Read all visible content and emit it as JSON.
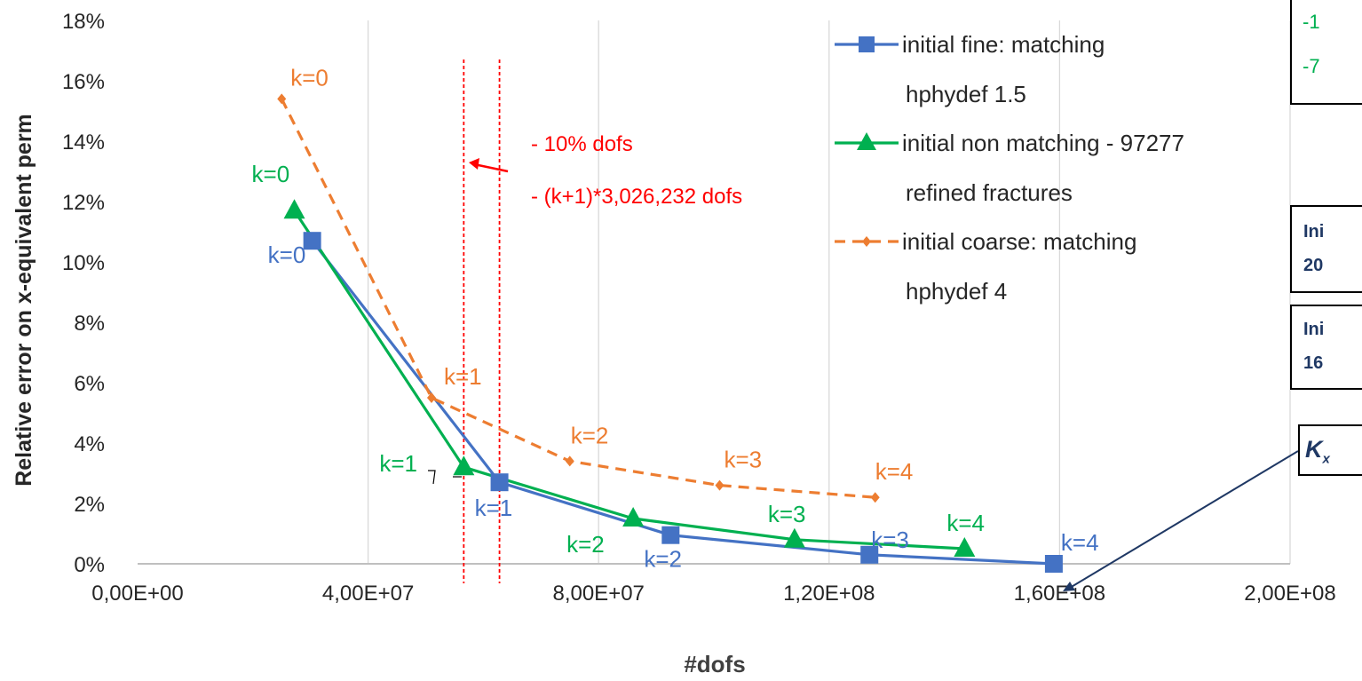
{
  "chart_data": {
    "type": "line",
    "xlabel": "#dofs",
    "ylabel": "Relative error on x-equivalent perm",
    "xlim": [
      0,
      200000000
    ],
    "ylim": [
      0,
      0.18
    ],
    "x_ticks": [
      0,
      40000000,
      80000000,
      120000000,
      160000000,
      200000000
    ],
    "x_tick_labels": [
      "0,00E+00",
      "4,00E+07",
      "8,00E+07",
      "1,20E+08",
      "1,60E+08",
      "2,00E+08"
    ],
    "y_ticks": [
      0,
      0.02,
      0.04,
      0.06,
      0.08,
      0.1,
      0.12,
      0.14,
      0.16,
      0.18
    ],
    "y_tick_labels": [
      "0%",
      "2%",
      "4%",
      "6%",
      "8%",
      "10%",
      "12%",
      "14%",
      "16%",
      "18%"
    ],
    "grid": "vertical",
    "legend_position": "top-right",
    "series": [
      {
        "name": "initial fine: matching hphydef 1.5",
        "legend_lines": [
          "initial fine: matching",
          "hphydef 1.5"
        ],
        "color": "#4472c4",
        "marker": "square",
        "dash": "solid",
        "x": [
          30300000,
          62800000,
          92500000,
          127000000,
          159000000
        ],
        "y": [
          0.107,
          0.027,
          0.0095,
          0.003,
          0.0
        ],
        "point_labels": [
          "k=0",
          "k=1",
          "k=2",
          "k=3",
          "k=4"
        ]
      },
      {
        "name": "initial non matching - 97277 refined fractures",
        "legend_lines": [
          "initial non matching - 97277",
          "refined fractures"
        ],
        "color": "#00b050",
        "marker": "triangle",
        "dash": "solid",
        "x": [
          27200000,
          56600000,
          86000000,
          114000000,
          143500000
        ],
        "y": [
          0.117,
          0.032,
          0.015,
          0.008,
          0.005
        ],
        "point_labels": [
          "k=0",
          "k=1",
          "k=2",
          "k=3",
          "k=4"
        ]
      },
      {
        "name": "initial coarse: matching hphydef 4",
        "legend_lines": [
          "initial coarse: matching",
          "hphydef 4"
        ],
        "color": "#ed7d31",
        "marker": "diamond",
        "dash": "dashed",
        "x": [
          25000000,
          51000000,
          75000000,
          101000000,
          128000000
        ],
        "y": [
          0.154,
          0.055,
          0.034,
          0.026,
          0.022
        ],
        "point_labels": [
          "k=0",
          "k=1",
          "k=2",
          "k=3",
          "k=4"
        ]
      }
    ],
    "reference_lines": [
      {
        "x": 56600000,
        "color": "#ff0000",
        "dash": "dotted",
        "label": "- 10% dofs"
      },
      {
        "x": 62800000,
        "color": "#ff0000",
        "dash": "dotted",
        "label": "- (k+1)*3,026,232 dofs"
      }
    ]
  },
  "side_boxes": {
    "box1": {
      "lines": [
        "-1",
        "-7"
      ],
      "color": "#00b050"
    },
    "box2": {
      "lines": [
        "Ini",
        "20"
      ],
      "color": "#1f3864"
    },
    "box3": {
      "lines": [
        "Ini",
        "16"
      ],
      "color": "#1f3864"
    },
    "box4": {
      "text": "K",
      "subscript": "x",
      "color": "#1f3864"
    }
  }
}
